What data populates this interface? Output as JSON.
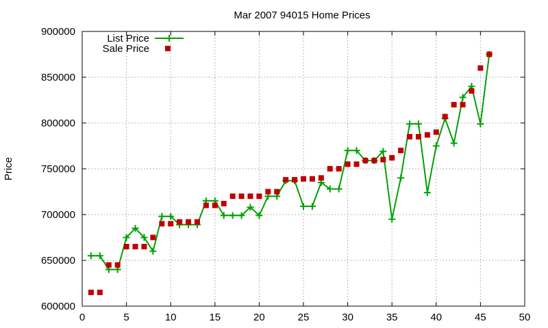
{
  "chart_data": {
    "type": "line",
    "title": "Mar 2007 94015 Home Prices",
    "xlabel": "",
    "ylabel": "Price",
    "xlim": [
      0,
      50
    ],
    "ylim": [
      600000,
      900000
    ],
    "xticks": [
      0,
      5,
      10,
      15,
      20,
      25,
      30,
      35,
      40,
      45,
      50
    ],
    "yticks": [
      600000,
      650000,
      700000,
      750000,
      800000,
      850000,
      900000
    ],
    "grid": true,
    "legend_position": "top-left",
    "series": [
      {
        "name": "List Price",
        "style": "line-with-plus-points",
        "color": "#00a000",
        "x": [
          1,
          2,
          3,
          4,
          5,
          6,
          7,
          8,
          9,
          10,
          11,
          12,
          13,
          14,
          15,
          16,
          17,
          18,
          19,
          20,
          21,
          22,
          23,
          24,
          25,
          26,
          27,
          28,
          29,
          30,
          31,
          32,
          33,
          34,
          35,
          36,
          37,
          38,
          39,
          40,
          41,
          42,
          43,
          44,
          45,
          46
        ],
        "y": [
          655000,
          655000,
          640000,
          640000,
          675000,
          685000,
          675000,
          660000,
          698000,
          698000,
          689000,
          689000,
          689000,
          715000,
          715000,
          699000,
          699000,
          699000,
          708000,
          699000,
          720000,
          720000,
          737000,
          737000,
          709000,
          709000,
          735000,
          728000,
          728000,
          770000,
          770000,
          759000,
          759000,
          769000,
          695000,
          740000,
          799000,
          799000,
          724000,
          775000,
          805000,
          778000,
          828000,
          840000,
          799000,
          875000
        ]
      },
      {
        "name": "Sale Price",
        "style": "square-points",
        "color": "#c00000",
        "x": [
          1,
          2,
          3,
          4,
          5,
          6,
          7,
          8,
          9,
          10,
          11,
          12,
          13,
          14,
          15,
          16,
          17,
          18,
          19,
          20,
          21,
          22,
          23,
          24,
          25,
          26,
          27,
          28,
          29,
          30,
          31,
          32,
          33,
          34,
          35,
          36,
          37,
          38,
          39,
          40,
          41,
          42,
          43,
          44,
          45,
          46
        ],
        "y": [
          615000,
          615000,
          645000,
          645000,
          665000,
          665000,
          665000,
          675000,
          690000,
          690000,
          692000,
          692000,
          692000,
          710000,
          710000,
          712000,
          720000,
          720000,
          720000,
          720000,
          725000,
          725000,
          738000,
          738000,
          739000,
          739000,
          740000,
          750000,
          750000,
          755000,
          755000,
          759000,
          759000,
          760000,
          762000,
          770000,
          785000,
          785000,
          787000,
          790000,
          807000,
          820000,
          820000,
          835000,
          860000,
          875000
        ]
      }
    ]
  }
}
